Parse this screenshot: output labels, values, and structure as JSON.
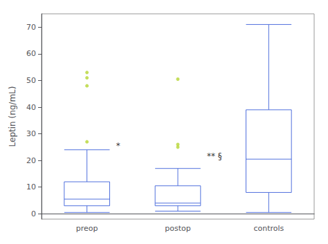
{
  "chart_data": {
    "type": "box",
    "categories": [
      "preop",
      "postop",
      "controls"
    ],
    "boxes": [
      {
        "low": 0.5,
        "q1": 3.0,
        "median": 5.5,
        "q3": 12.0,
        "high": 24.0,
        "fliers": [
          27.0,
          48.0,
          51.0,
          53.0
        ]
      },
      {
        "low": 1.0,
        "q1": 3.0,
        "median": 4.0,
        "q3": 10.5,
        "high": 17.0,
        "fliers": [
          25.0,
          26.0,
          50.5
        ]
      },
      {
        "low": 0.5,
        "q1": 8.0,
        "median": 20.5,
        "q3": 39.0,
        "high": 71.0,
        "fliers": []
      }
    ],
    "ylabel": "Leptin (ng/mL)",
    "ylim": [
      -2,
      75
    ],
    "yticks": [
      0,
      10,
      20,
      30,
      40,
      50,
      60,
      70
    ],
    "grid": false,
    "annotations": [
      {
        "text": "*",
        "category": "preop",
        "y": 25.5
      },
      {
        "text": "** §",
        "category": "postop",
        "y": 21.5
      }
    ]
  }
}
